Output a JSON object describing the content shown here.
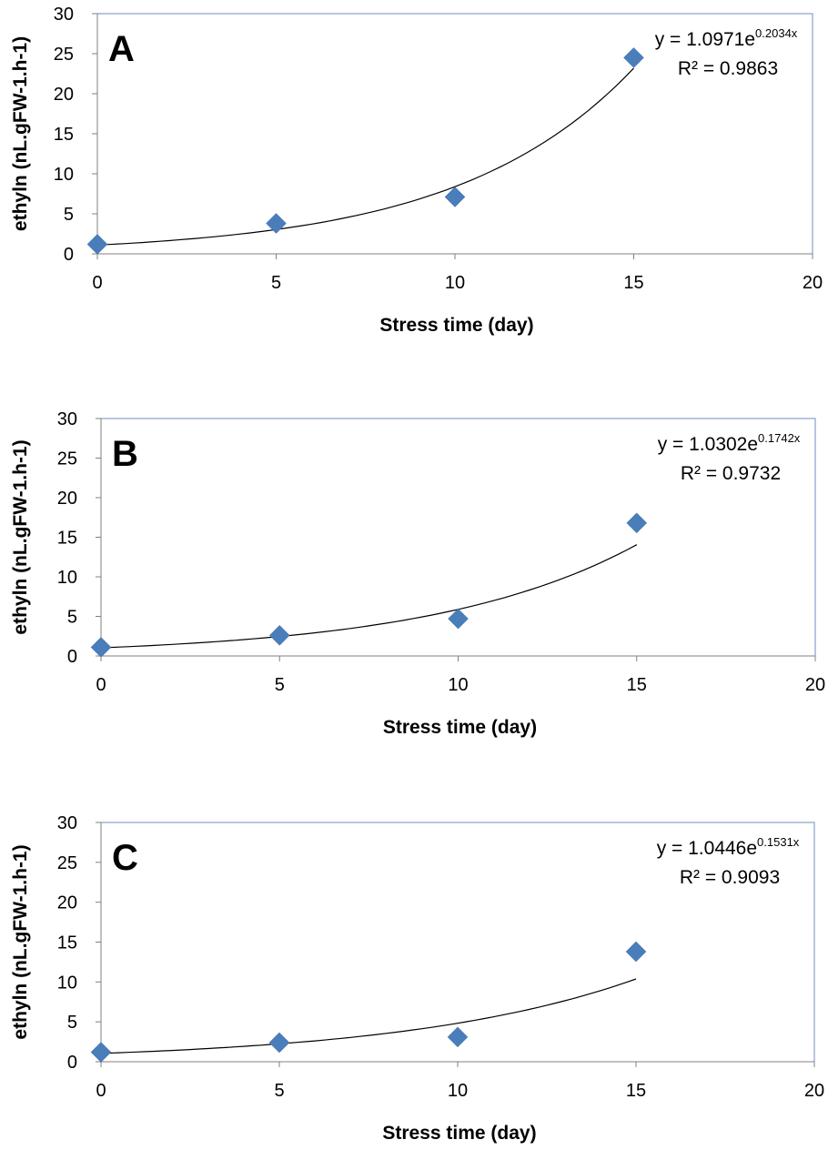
{
  "chart_data": [
    {
      "type": "scatter",
      "panel_label": "A",
      "xlabel": "Stress time (day)",
      "ylabel": "ethyln (nL.gFW-1.h-1)",
      "xlim": [
        0,
        20
      ],
      "ylim": [
        0,
        30
      ],
      "xticks": [
        "0",
        "5",
        "10",
        "15",
        "20"
      ],
      "yticks": [
        "0",
        "5",
        "10",
        "15",
        "20",
        "25",
        "30"
      ],
      "x": [
        0,
        5,
        10,
        15
      ],
      "y": [
        1.2,
        3.8,
        7.1,
        24.5
      ],
      "trendline": {
        "type": "exponential",
        "a": 1.0971,
        "b": 0.2034,
        "x_range": [
          0,
          15
        ]
      },
      "equation": {
        "prefix": "y = 1.0971e",
        "exponent": "0.2034x"
      },
      "r2_label": "R² = 0.9863",
      "marker_color": "#4a7ebb",
      "grid": false
    },
    {
      "type": "scatter",
      "panel_label": "B",
      "xlabel": "Stress time (day)",
      "ylabel": "ethyln (nL.gFW-1.h-1)",
      "xlim": [
        0,
        20
      ],
      "ylim": [
        0,
        30
      ],
      "xticks": [
        "0",
        "5",
        "10",
        "15",
        "20"
      ],
      "yticks": [
        "0",
        "5",
        "10",
        "15",
        "20",
        "25",
        "30"
      ],
      "x": [
        0,
        5,
        10,
        15
      ],
      "y": [
        1.1,
        2.6,
        4.7,
        16.8
      ],
      "trendline": {
        "type": "exponential",
        "a": 1.0302,
        "b": 0.1742,
        "x_range": [
          0,
          15
        ]
      },
      "equation": {
        "prefix": "y = 1.0302e",
        "exponent": "0.1742x"
      },
      "r2_label": "R² = 0.9732",
      "marker_color": "#4a7ebb",
      "grid": false
    },
    {
      "type": "scatter",
      "panel_label": "C",
      "xlabel": "Stress time (day)",
      "ylabel": "ethyln (nL.gFW-1.h-1)",
      "xlim": [
        0,
        20
      ],
      "ylim": [
        0,
        30
      ],
      "xticks": [
        "0",
        "5",
        "10",
        "15",
        "20"
      ],
      "yticks": [
        "0",
        "5",
        "10",
        "15",
        "20",
        "25",
        "30"
      ],
      "x": [
        0,
        5,
        10,
        15
      ],
      "y": [
        1.2,
        2.4,
        3.1,
        13.8
      ],
      "trendline": {
        "type": "exponential",
        "a": 1.0446,
        "b": 0.1531,
        "x_range": [
          0,
          15
        ]
      },
      "equation": {
        "prefix": "y = 1.0446e",
        "exponent": "0.1531x"
      },
      "r2_label": "R² = 0.9093",
      "marker_color": "#4a7ebb",
      "grid": false
    }
  ]
}
